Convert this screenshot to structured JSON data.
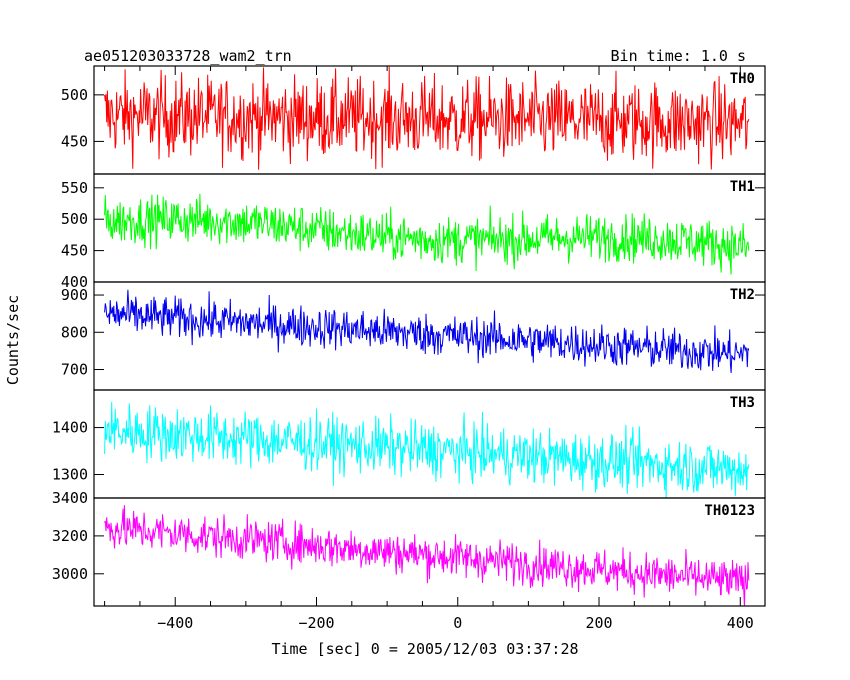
{
  "header": {
    "left_title": "ae051203033728_wam2_trn",
    "right_title": "Bin time: 1.0 s"
  },
  "axes": {
    "xlabel": "Time [sec] 0 = 2005/12/03 03:37:28",
    "ylabel": "Counts/sec"
  },
  "chart_data": {
    "type": "line",
    "x_range": [
      -515,
      435
    ],
    "x_ticks": [
      -400,
      -200,
      0,
      200,
      400
    ],
    "x_tick_labels": [
      "−400",
      "−200",
      "0",
      "200",
      "400"
    ],
    "x_start": -500,
    "x_end": 412,
    "panels": [
      {
        "name": "TH0",
        "color": "#ff0000",
        "ylim": [
          415,
          531
        ],
        "ticks": [
          450,
          500
        ],
        "tick_labels": [
          "450",
          "500"
        ],
        "start_mean": 478,
        "end_mean": 470,
        "noise": 22,
        "hump": 0
      },
      {
        "name": "TH1",
        "color": "#00ff00",
        "ylim": [
          400,
          572
        ],
        "ticks": [
          400,
          450,
          500,
          550
        ],
        "tick_labels": [
          "400",
          "450",
          "500",
          "550"
        ],
        "start_mean": 497,
        "end_mean": 455,
        "noise": 19,
        "hump": 8
      },
      {
        "name": "TH2",
        "color": "#0000ee",
        "ylim": [
          645,
          935
        ],
        "ticks": [
          700,
          800,
          900
        ],
        "tick_labels": [
          "700",
          "800",
          "900"
        ],
        "start_mean": 850,
        "end_mean": 740,
        "noise": 28,
        "hump": 0
      },
      {
        "name": "TH3",
        "color": "#00ffff",
        "ylim": [
          1250,
          1480
        ],
        "ticks": [
          1300,
          1400
        ],
        "tick_labels": [
          "1300",
          "1400"
        ],
        "start_mean": 1395,
        "end_mean": 1310,
        "noise": 30,
        "hump": 0
      },
      {
        "name": "TH0123",
        "color": "#ff00ff",
        "ylim": [
          2830,
          3400
        ],
        "ticks": [
          3000,
          3200,
          3400
        ],
        "tick_labels": [
          "3000",
          "3200",
          "3400"
        ],
        "start_mean": 3245,
        "end_mean": 2955,
        "noise": 55,
        "hump": 0
      }
    ]
  }
}
